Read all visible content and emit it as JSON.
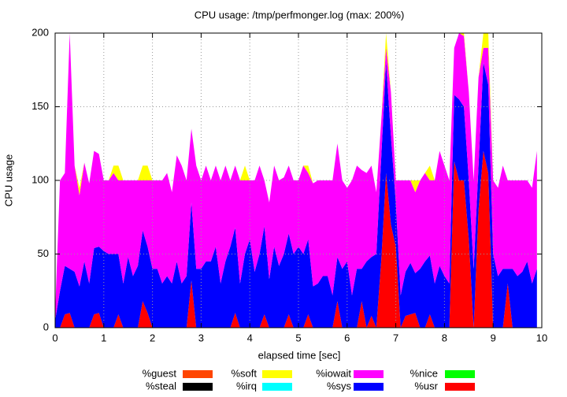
{
  "chart_data": {
    "type": "stacked-area",
    "title": "CPU usage: /tmp/perfmonger.log (max: 200%)",
    "x_label": "elapsed time [sec]",
    "y_label": "CPU usage",
    "xlim": [
      0,
      10
    ],
    "xticks": [
      0,
      1,
      2,
      3,
      4,
      5,
      6,
      7,
      8,
      9,
      10
    ],
    "ylim": [
      0,
      200
    ],
    "yticks": [
      0,
      50,
      100,
      150,
      200
    ],
    "grid": true,
    "x": [
      0,
      0.1,
      0.2,
      0.3,
      0.4,
      0.5,
      0.6,
      0.7,
      0.8,
      0.9,
      1,
      1.1,
      1.2,
      1.3,
      1.4,
      1.5,
      1.6,
      1.7,
      1.8,
      1.9,
      2,
      2.1,
      2.2,
      2.3,
      2.4,
      2.5,
      2.6,
      2.7,
      2.8,
      2.9,
      3,
      3.1,
      3.2,
      3.3,
      3.4,
      3.5,
      3.6,
      3.7,
      3.8,
      3.9,
      4,
      4.1,
      4.2,
      4.3,
      4.4,
      4.5,
      4.6,
      4.7,
      4.8,
      4.9,
      5,
      5.1,
      5.2,
      5.3,
      5.4,
      5.5,
      5.6,
      5.7,
      5.8,
      5.9,
      6,
      6.1,
      6.2,
      6.3,
      6.4,
      6.5,
      6.6,
      6.7,
      6.8,
      6.9,
      7,
      7.1,
      7.2,
      7.3,
      7.4,
      7.5,
      7.6,
      7.7,
      7.8,
      7.9,
      8,
      8.1,
      8.2,
      8.3,
      8.4,
      8.5,
      8.6,
      8.7,
      8.8,
      8.9,
      9,
      9.1,
      9.2,
      9.3,
      9.4,
      9.5,
      9.6,
      9.7,
      9.8,
      9.9
    ],
    "series": [
      {
        "name": "%usr",
        "color": "#ff0000",
        "values": [
          0,
          0,
          9,
          10,
          0,
          0,
          0,
          0,
          9,
          10,
          0,
          0,
          0,
          9,
          0,
          0,
          0,
          0,
          18,
          10,
          0,
          0,
          0,
          0,
          0,
          0,
          0,
          0,
          32,
          0,
          0,
          0,
          0,
          0,
          0,
          0,
          0,
          10,
          0,
          0,
          0,
          0,
          0,
          9,
          0,
          0,
          0,
          0,
          9,
          0,
          0,
          0,
          9,
          0,
          0,
          0,
          0,
          0,
          18,
          0,
          0,
          0,
          0,
          18,
          0,
          8,
          0,
          45,
          105,
          70,
          55,
          0,
          8,
          9,
          10,
          0,
          0,
          9,
          0,
          0,
          0,
          0,
          113,
          100,
          100,
          60,
          0,
          80,
          120,
          105,
          0,
          0,
          0,
          30,
          0,
          0,
          0,
          0,
          0,
          0
        ]
      },
      {
        "name": "%sys",
        "color": "#0000ff",
        "values": [
          5,
          25,
          33,
          30,
          38,
          28,
          45,
          30,
          45,
          45,
          52,
          50,
          50,
          41,
          30,
          48,
          35,
          42,
          48,
          45,
          40,
          40,
          30,
          35,
          30,
          45,
          30,
          35,
          53,
          40,
          40,
          45,
          45,
          55,
          30,
          45,
          55,
          58,
          30,
          50,
          60,
          38,
          50,
          60,
          33,
          55,
          42,
          50,
          55,
          50,
          55,
          50,
          51,
          28,
          30,
          35,
          35,
          22,
          30,
          40,
          45,
          22,
          40,
          22,
          45,
          40,
          50,
          70,
          75,
          60,
          30,
          22,
          30,
          35,
          27,
          40,
          45,
          40,
          30,
          42,
          35,
          30,
          45,
          55,
          50,
          40,
          40,
          30,
          60,
          60,
          50,
          35,
          40,
          10,
          40,
          35,
          38,
          45,
          30,
          40
        ]
      },
      {
        "name": "%iowait",
        "color": "#ff00ff",
        "values": [
          5,
          75,
          63,
          160,
          72,
          62,
          67,
          68,
          66,
          63,
          48,
          50,
          55,
          50,
          70,
          52,
          65,
          58,
          34,
          45,
          60,
          60,
          70,
          70,
          62,
          72,
          80,
          65,
          50,
          70,
          60,
          65,
          55,
          55,
          70,
          65,
          45,
          42,
          70,
          50,
          40,
          62,
          60,
          31,
          52,
          55,
          58,
          52,
          46,
          50,
          45,
          60,
          45,
          70,
          70,
          65,
          65,
          78,
          77,
          60,
          50,
          78,
          70,
          67,
          60,
          62,
          42,
          25,
          10,
          30,
          15,
          78,
          62,
          56,
          55,
          60,
          60,
          51,
          70,
          78,
          75,
          70,
          32,
          45,
          48,
          60,
          60,
          60,
          10,
          25,
          50,
          60,
          70,
          60,
          60,
          65,
          62,
          55,
          65,
          80
        ]
      },
      {
        "name": "%nice",
        "color": "#00ff00",
        "values": [
          0,
          0,
          0,
          0,
          0,
          0,
          0,
          0,
          0,
          0,
          0,
          0,
          0,
          0,
          0,
          0,
          0,
          0,
          0,
          0,
          0,
          0,
          0,
          0,
          0,
          0,
          0,
          0,
          0,
          0,
          0,
          0,
          0,
          0,
          0,
          0,
          0,
          0,
          0,
          0,
          0,
          0,
          0,
          0,
          0,
          0,
          0,
          0,
          0,
          0,
          0,
          0,
          0,
          0,
          0,
          0,
          0,
          0,
          0,
          0,
          0,
          0,
          0,
          0,
          0,
          0,
          0,
          0,
          0,
          0,
          0,
          0,
          0,
          0,
          0,
          0,
          0,
          0,
          0,
          0,
          0,
          0,
          0,
          0,
          0,
          0,
          0,
          0,
          0,
          0,
          0,
          0,
          0,
          0,
          0,
          0,
          0,
          0,
          0,
          0
        ]
      },
      {
        "name": "%soft",
        "color": "#ffff00",
        "values": [
          0,
          0,
          0,
          0,
          0,
          5,
          0,
          0,
          0,
          0,
          0,
          0,
          5,
          10,
          0,
          0,
          0,
          0,
          10,
          10,
          0,
          0,
          0,
          0,
          0,
          0,
          0,
          0,
          0,
          0,
          0,
          0,
          0,
          0,
          0,
          0,
          0,
          0,
          0,
          10,
          0,
          0,
          0,
          0,
          0,
          0,
          0,
          0,
          0,
          0,
          0,
          0,
          5,
          0,
          0,
          0,
          0,
          0,
          0,
          0,
          0,
          0,
          0,
          0,
          0,
          0,
          0,
          0,
          10,
          0,
          0,
          0,
          0,
          0,
          8,
          0,
          0,
          10,
          0,
          0,
          0,
          0,
          0,
          0,
          2,
          0,
          0,
          0,
          10,
          10,
          0,
          0,
          0,
          0,
          0,
          0,
          0,
          0,
          0,
          0
        ]
      },
      {
        "name": "%irq",
        "color": "#00ffff",
        "values": [
          0,
          0,
          0,
          0,
          0,
          0,
          0,
          0,
          0,
          0,
          0,
          0,
          0,
          0,
          0,
          0,
          0,
          0,
          0,
          0,
          0,
          0,
          0,
          0,
          0,
          0,
          0,
          0,
          0,
          0,
          0,
          0,
          0,
          0,
          0,
          0,
          0,
          0,
          0,
          0,
          0,
          0,
          0,
          0,
          0,
          0,
          0,
          0,
          0,
          0,
          0,
          0,
          0,
          0,
          0,
          0,
          0,
          0,
          0,
          0,
          0,
          0,
          0,
          0,
          0,
          0,
          0,
          0,
          0,
          0,
          0,
          0,
          0,
          0,
          0,
          0,
          0,
          0,
          0,
          0,
          0,
          0,
          0,
          0,
          0,
          0,
          0,
          0,
          0,
          0,
          0,
          0,
          0,
          0,
          0,
          0,
          0,
          0,
          0,
          0
        ]
      },
      {
        "name": "%guest",
        "color": "#ff4500",
        "values": [
          0,
          0,
          0,
          0,
          0,
          0,
          0,
          0,
          0,
          0,
          0,
          0,
          0,
          0,
          0,
          0,
          0,
          0,
          0,
          0,
          0,
          0,
          0,
          0,
          0,
          0,
          0,
          0,
          0,
          0,
          0,
          0,
          0,
          0,
          0,
          0,
          0,
          0,
          0,
          0,
          0,
          0,
          0,
          0,
          0,
          0,
          0,
          0,
          0,
          0,
          0,
          0,
          0,
          0,
          0,
          0,
          0,
          0,
          0,
          0,
          0,
          0,
          0,
          0,
          0,
          0,
          0,
          0,
          0,
          0,
          0,
          0,
          0,
          0,
          0,
          0,
          0,
          0,
          0,
          0,
          0,
          0,
          0,
          0,
          0,
          0,
          0,
          0,
          0,
          0,
          0,
          0,
          0,
          0,
          0,
          0,
          0,
          0,
          0,
          0
        ]
      },
      {
        "name": "%steal",
        "color": "#000000",
        "values": [
          0,
          0,
          0,
          0,
          0,
          0,
          0,
          0,
          0,
          0,
          0,
          0,
          0,
          0,
          0,
          0,
          0,
          0,
          0,
          0,
          0,
          0,
          0,
          0,
          0,
          0,
          0,
          0,
          0,
          0,
          0,
          0,
          0,
          0,
          0,
          0,
          0,
          0,
          0,
          0,
          0,
          0,
          0,
          0,
          0,
          0,
          0,
          0,
          0,
          0,
          0,
          0,
          0,
          0,
          0,
          0,
          0,
          0,
          0,
          0,
          0,
          0,
          0,
          0,
          0,
          0,
          0,
          0,
          0,
          0,
          0,
          0,
          0,
          0,
          0,
          0,
          0,
          0,
          0,
          0,
          0,
          0,
          0,
          0,
          0,
          0,
          0,
          0,
          0,
          0,
          0,
          0,
          0,
          0,
          0,
          0,
          0,
          0,
          0,
          0
        ]
      }
    ]
  }
}
